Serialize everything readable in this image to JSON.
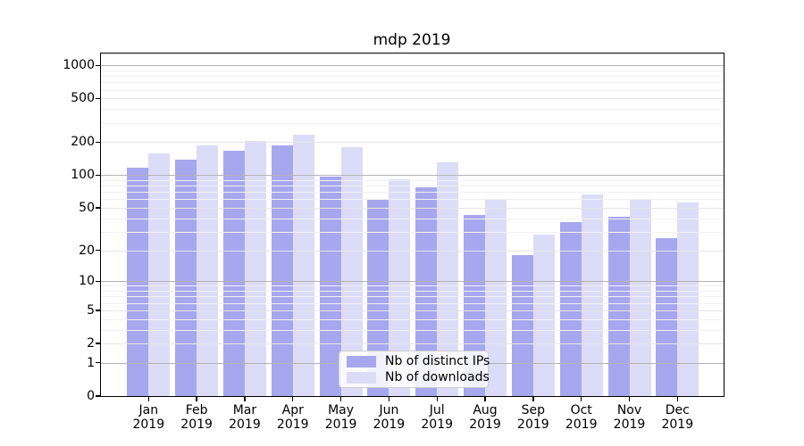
{
  "title": "mdp 2019",
  "chart_data": {
    "type": "bar",
    "title": "mdp 2019",
    "categories": [
      "Jan",
      "Feb",
      "Mar",
      "Apr",
      "May",
      "Jun",
      "Jul",
      "Aug",
      "Sep",
      "Oct",
      "Nov",
      "Dec"
    ],
    "category_year": "2019",
    "series": [
      {
        "name": "Nb of distinct IPs",
        "color": "#a7a7ef",
        "values": [
          118,
          139,
          167,
          188,
          97,
          61,
          77,
          43,
          18,
          37,
          41,
          26
        ]
      },
      {
        "name": "Nb of downloads",
        "color": "#dcdcf8",
        "values": [
          157,
          187,
          205,
          234,
          179,
          92,
          131,
          61,
          28,
          67,
          59,
          56
        ]
      }
    ],
    "xlabel": "",
    "ylabel": "",
    "y_scale": "log10(1+v)",
    "y_ticks": [
      0,
      1,
      2,
      5,
      10,
      20,
      50,
      100,
      200,
      500,
      1000
    ],
    "y_minor_gridlines": [
      3,
      4,
      6,
      7,
      8,
      9,
      30,
      40,
      60,
      70,
      80,
      90,
      300,
      400,
      600,
      700,
      800,
      900
    ],
    "ylim": [
      0,
      1280
    ],
    "grid": true,
    "legend_position": "lower center"
  },
  "legend": {
    "items": [
      "Nb of distinct IPs",
      "Nb of downloads"
    ]
  },
  "colors": {
    "bar_dark": "#a7a7ef",
    "bar_light": "#dcdcf8",
    "grid_major": "#b3b3b3",
    "grid_labeled": "#e5e5e5",
    "grid_minor": "#f1f1f1",
    "axis": "#000000"
  }
}
